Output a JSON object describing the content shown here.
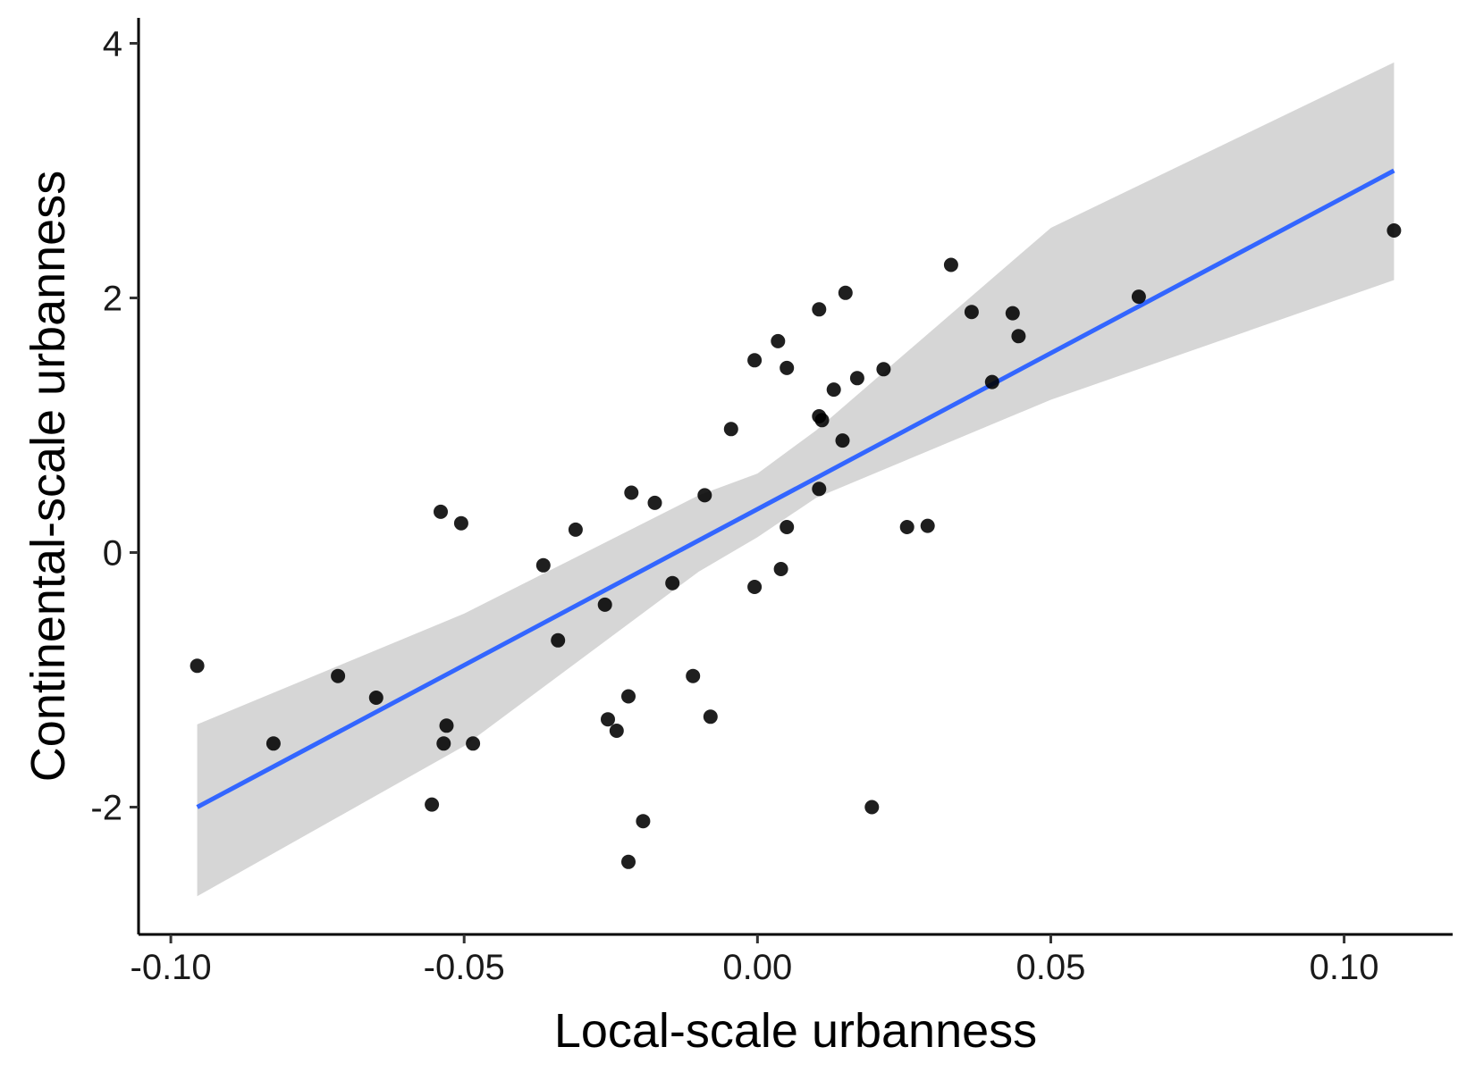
{
  "chart_data": {
    "type": "scatter",
    "title": "",
    "xlabel": "Local-scale urbanness",
    "ylabel": "Continental-scale urbanness",
    "xlim": [
      -0.1055,
      0.1185
    ],
    "ylim": [
      -3.0,
      4.2
    ],
    "x_ticks": [
      -0.1,
      -0.05,
      0.0,
      0.05,
      0.1
    ],
    "x_tick_labels": [
      "-0.10",
      "-0.05",
      "0.00",
      "0.05",
      "0.10"
    ],
    "y_ticks": [
      -2,
      0,
      2,
      4
    ],
    "y_tick_labels": [
      "-2",
      "0",
      "2",
      "4"
    ],
    "grid": false,
    "legend": "none",
    "colors": {
      "points": "#000000",
      "fit_line": "#3366ff",
      "confidence_band": "#d6d6d6",
      "axis": "#000000"
    },
    "points": [
      {
        "x": -0.0955,
        "y": -0.89
      },
      {
        "x": -0.0825,
        "y": -1.5
      },
      {
        "x": -0.0715,
        "y": -0.97
      },
      {
        "x": -0.065,
        "y": -1.14
      },
      {
        "x": -0.0555,
        "y": -1.98
      },
      {
        "x": -0.054,
        "y": 0.32
      },
      {
        "x": -0.053,
        "y": -1.36
      },
      {
        "x": -0.0535,
        "y": -1.5
      },
      {
        "x": -0.0505,
        "y": 0.23
      },
      {
        "x": -0.0485,
        "y": -1.5
      },
      {
        "x": -0.0365,
        "y": -0.1
      },
      {
        "x": -0.034,
        "y": -0.69
      },
      {
        "x": -0.031,
        "y": 0.18
      },
      {
        "x": -0.026,
        "y": -0.41
      },
      {
        "x": -0.0255,
        "y": -1.31
      },
      {
        "x": -0.024,
        "y": -1.4
      },
      {
        "x": -0.022,
        "y": -1.13
      },
      {
        "x": -0.0215,
        "y": 0.47
      },
      {
        "x": -0.022,
        "y": -2.43
      },
      {
        "x": -0.0195,
        "y": -2.11
      },
      {
        "x": -0.0175,
        "y": 0.39
      },
      {
        "x": -0.0145,
        "y": -0.24
      },
      {
        "x": -0.011,
        "y": -0.97
      },
      {
        "x": -0.009,
        "y": 0.45
      },
      {
        "x": -0.008,
        "y": -1.29
      },
      {
        "x": -0.0045,
        "y": 0.97
      },
      {
        "x": -0.0005,
        "y": 1.51
      },
      {
        "x": -0.0005,
        "y": -0.27
      },
      {
        "x": 0.0035,
        "y": 1.66
      },
      {
        "x": 0.004,
        "y": -0.13
      },
      {
        "x": 0.005,
        "y": 1.45
      },
      {
        "x": 0.005,
        "y": 0.2
      },
      {
        "x": 0.0105,
        "y": 1.91
      },
      {
        "x": 0.0105,
        "y": 1.07
      },
      {
        "x": 0.011,
        "y": 1.04
      },
      {
        "x": 0.0105,
        "y": 0.5
      },
      {
        "x": 0.013,
        "y": 1.28
      },
      {
        "x": 0.0145,
        "y": 0.88
      },
      {
        "x": 0.015,
        "y": 2.04
      },
      {
        "x": 0.017,
        "y": 1.37
      },
      {
        "x": 0.0195,
        "y": -2.0
      },
      {
        "x": 0.0215,
        "y": 1.44
      },
      {
        "x": 0.0255,
        "y": 0.2
      },
      {
        "x": 0.029,
        "y": 0.21
      },
      {
        "x": 0.033,
        "y": 2.26
      },
      {
        "x": 0.0365,
        "y": 1.89
      },
      {
        "x": 0.04,
        "y": 1.34
      },
      {
        "x": 0.0435,
        "y": 1.88
      },
      {
        "x": 0.0445,
        "y": 1.7
      },
      {
        "x": 0.065,
        "y": 2.01
      },
      {
        "x": 0.1085,
        "y": 2.53
      }
    ],
    "fit_line": [
      {
        "x": -0.0955,
        "y": -2.0
      },
      {
        "x": 0.1085,
        "y": 3.0
      }
    ],
    "confidence_band": [
      {
        "x": -0.0955,
        "lower": -2.7,
        "upper": -1.35
      },
      {
        "x": -0.05,
        "lower": -1.52,
        "upper": -0.48
      },
      {
        "x": -0.01,
        "lower": -0.15,
        "upper": 0.45
      },
      {
        "x": 0.0,
        "lower": 0.12,
        "upper": 0.62
      },
      {
        "x": 0.01,
        "lower": 0.43,
        "upper": 0.96
      },
      {
        "x": 0.05,
        "lower": 1.2,
        "upper": 2.55
      },
      {
        "x": 0.1085,
        "lower": 2.14,
        "upper": 3.85
      }
    ]
  }
}
